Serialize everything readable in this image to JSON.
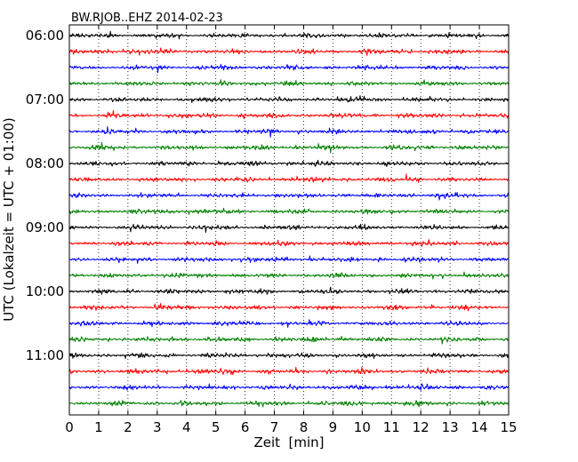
{
  "chart_data": {
    "type": "line",
    "title": "BW.RJOB..EHZ 2014-02-23",
    "xlabel": "Zeit  [min]",
    "ylabel": "UTC (Lokalzeit = UTC + 01:00)",
    "xlim": [
      0,
      15
    ],
    "xticks": [
      "0",
      "1",
      "2",
      "3",
      "4",
      "5",
      "6",
      "7",
      "8",
      "9",
      "10",
      "11",
      "12",
      "13",
      "14",
      "15"
    ],
    "y_tick_labels": [
      "06:00",
      "07:00",
      "08:00",
      "09:00",
      "10:00",
      "11:00"
    ],
    "trace_colors": [
      "#000000",
      "#ff0000",
      "#0000ff",
      "#008000"
    ],
    "trace_start_times": [
      "06:00",
      "06:15",
      "06:30",
      "06:45",
      "07:00",
      "07:15",
      "07:30",
      "07:45",
      "08:00",
      "08:15",
      "08:30",
      "08:45",
      "09:00",
      "09:15",
      "09:30",
      "09:45",
      "10:00",
      "10:15",
      "10:30",
      "10:45",
      "11:00",
      "11:15",
      "11:30",
      "11:45"
    ],
    "grid": "vertical dotted",
    "legend": "none"
  }
}
